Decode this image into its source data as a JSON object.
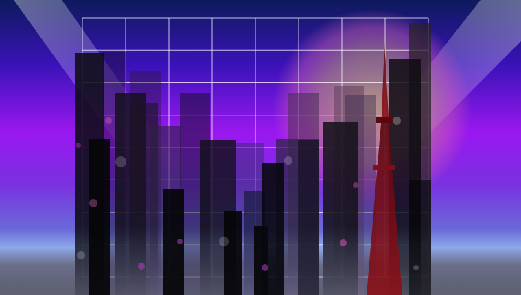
{
  "scene": {
    "description_free": true,
    "colors": {
      "sky_top": "#0d1a5c",
      "sky_mid": "#5a14d8",
      "sky_violet": "#9a18f0",
      "sky_low": "#6a6ad8",
      "horizon": "#8aa8e8",
      "ground_haze": "#3a3a46",
      "moon_core": "#c8c070",
      "moon_glow": "#d060b0",
      "grid_line": "#ffffff",
      "building_dark": "#0a0a10",
      "building_mid": "#1a1428",
      "tower": "#6a0a14",
      "spotlight": "#ffffff"
    },
    "grid": {
      "columns": 8,
      "rows": 8
    }
  }
}
